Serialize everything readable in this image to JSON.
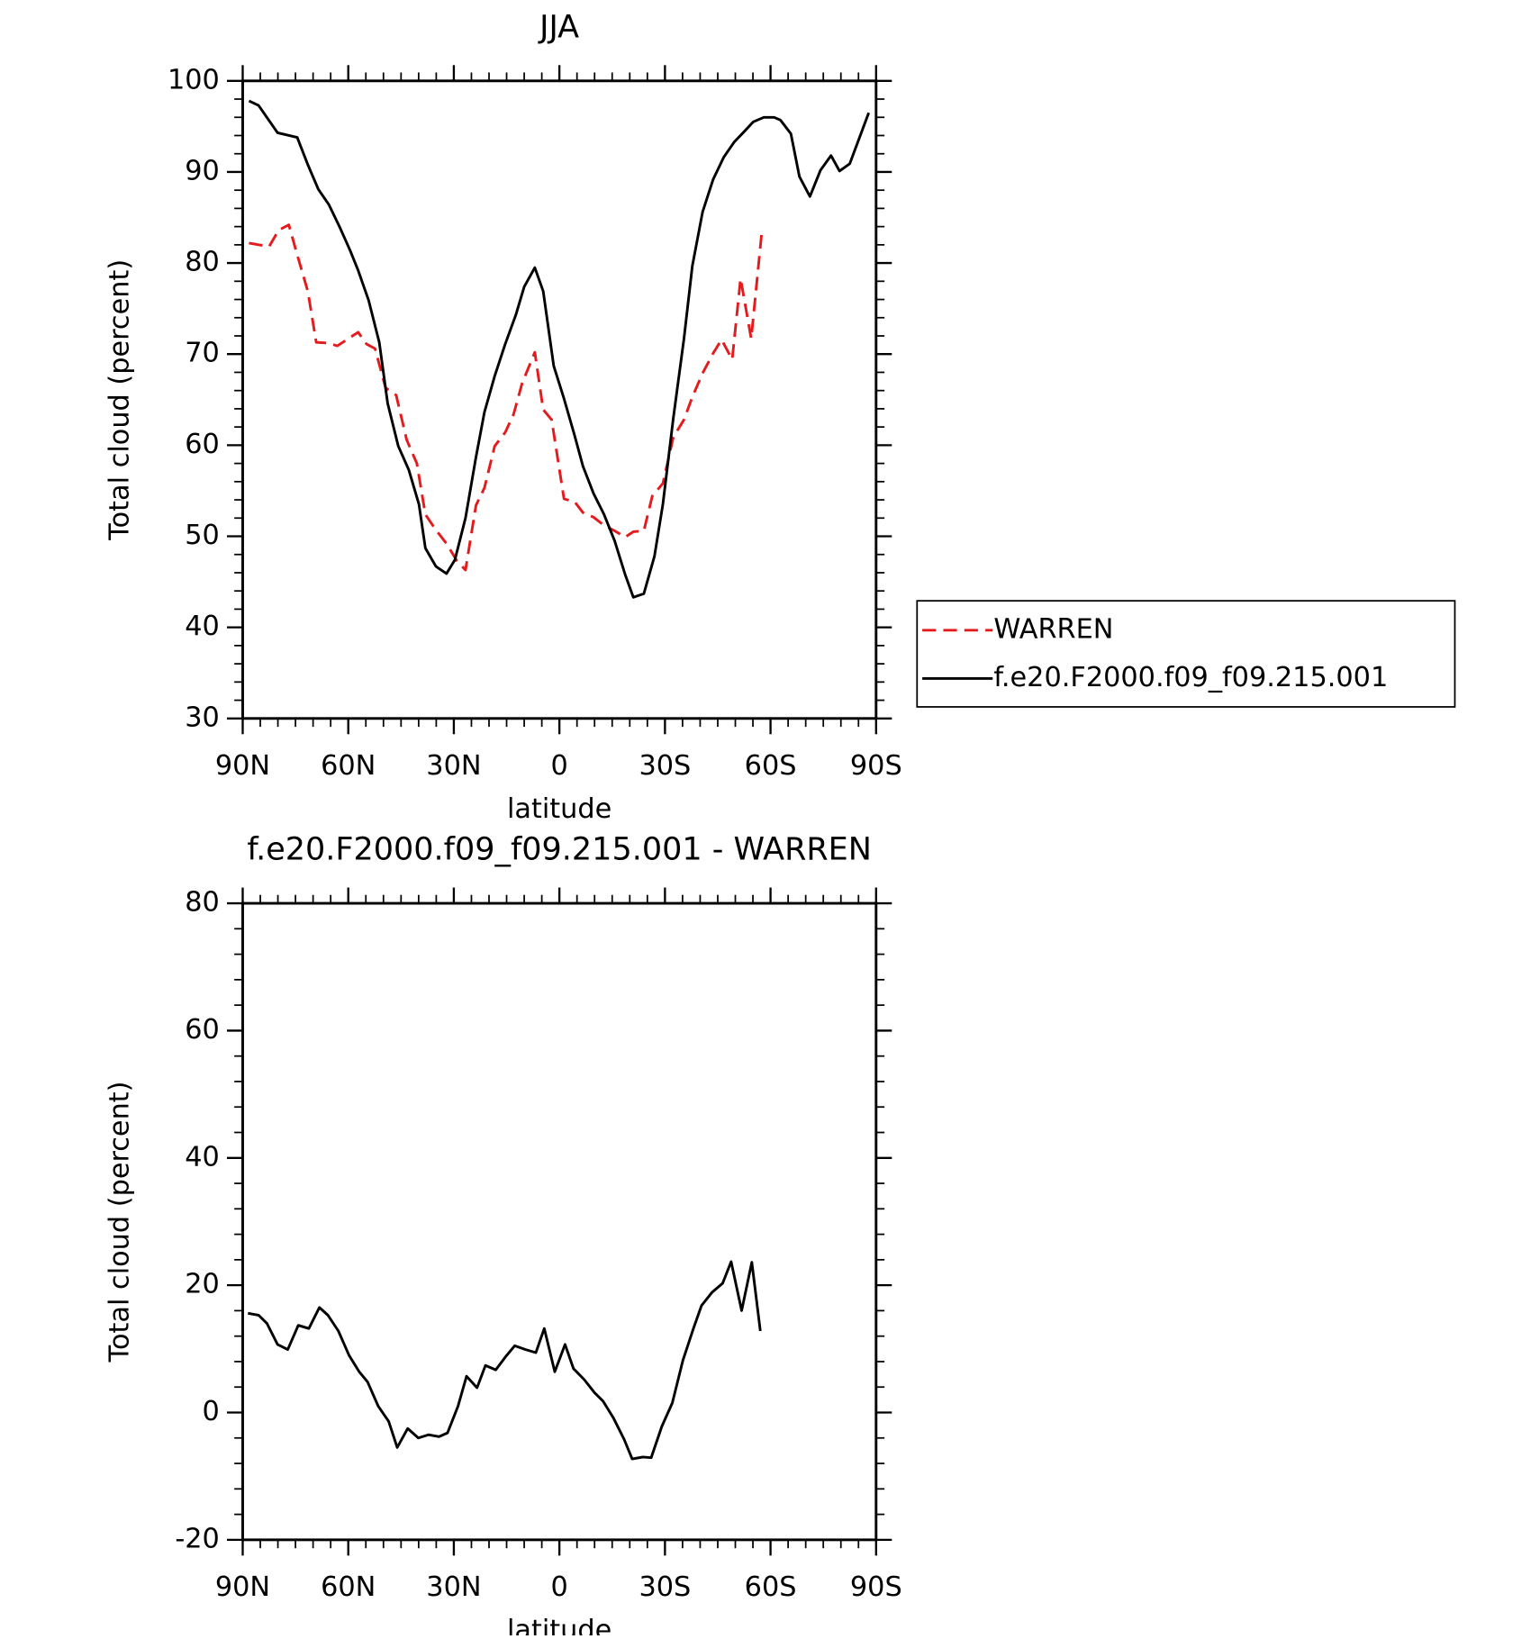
{
  "chart_data": [
    {
      "type": "line",
      "title": "JJA",
      "x_label": "latitude",
      "y_label": "Total cloud (percent)",
      "xlim": [
        90,
        -90
      ],
      "xticks": [
        {
          "value": 90,
          "label": "90N"
        },
        {
          "value": 60,
          "label": "60N"
        },
        {
          "value": 30,
          "label": "30N"
        },
        0,
        {
          "value": -30,
          "label": "30S"
        },
        {
          "value": -60,
          "label": "60S"
        },
        {
          "value": -90,
          "label": "90S"
        }
      ],
      "ylim": [
        30,
        100
      ],
      "yticks": [
        30,
        40,
        50,
        60,
        70,
        80,
        90,
        100
      ],
      "legend": "right",
      "series": [
        {
          "name": "WARREN",
          "color": "#e41a1c",
          "style": "dashed",
          "x": [
            88.2,
            82.5,
            79.8,
            76.9,
            74.5,
            71.5,
            69.1,
            65.5,
            63.1,
            57.2,
            54.8,
            52.4,
            49.4,
            46.4,
            43.4,
            40.5,
            38.1,
            35.1,
            32.1,
            29.1,
            26.7,
            23.7,
            21.3,
            18.4,
            15.4,
            13.0,
            10.6,
            7.0,
            4.6,
            2.2,
            -1.3,
            -4.3,
            -6.7,
            -9.7,
            -12.7,
            -15.7,
            -18.7,
            -21.0,
            -24.0,
            -26.4,
            -29.4,
            -32.4,
            -35.4,
            -37.8,
            -40.7,
            -43.7,
            -46.1,
            -49.1,
            -51.5,
            -54.5,
            -57.5
          ],
          "values": [
            82.2,
            81.8,
            83.6,
            84.2,
            80.9,
            76.9,
            71.3,
            71.2,
            70.9,
            72.4,
            71.1,
            70.6,
            66.3,
            65.5,
            60.6,
            58.0,
            52.4,
            50.7,
            49.2,
            47.3,
            46.3,
            53.4,
            55.3,
            59.9,
            61.4,
            63.4,
            66.8,
            70.2,
            63.9,
            62.8,
            54.1,
            53.8,
            52.6,
            52.1,
            51.2,
            50.6,
            49.9,
            50.5,
            50.6,
            54.4,
            55.8,
            60.9,
            62.8,
            65.3,
            67.9,
            70.1,
            71.6,
            69.4,
            78.3,
            71.7,
            83.3
          ]
        },
        {
          "name": "f.e20.F2000.f09_f09.215.001",
          "color": "#000000",
          "style": "solid",
          "x": [
            88.2,
            85.5,
            80.1,
            74.5,
            71.5,
            68.5,
            65.5,
            62.5,
            59.5,
            57.2,
            54.2,
            51.2,
            48.8,
            45.8,
            42.8,
            39.9,
            38.1,
            35.1,
            32.1,
            29.7,
            26.7,
            23.7,
            21.3,
            18.4,
            15.4,
            12.4,
            10.0,
            7.0,
            4.6,
            1.6,
            -1.3,
            -4.3,
            -6.7,
            -9.7,
            -12.7,
            -15.7,
            -18.7,
            -21.0,
            -24.0,
            -27.0,
            -29.4,
            -32.4,
            -35.4,
            -37.8,
            -40.7,
            -43.7,
            -46.7,
            -49.7,
            -52.7,
            -55.1,
            -58.1,
            -61.0,
            -62.8,
            -65.8,
            -68.2,
            -71.2,
            -74.2,
            -77.2,
            -79.6,
            -82.5,
            -87.9
          ],
          "values": [
            97.8,
            97.3,
            94.3,
            93.8,
            90.8,
            88.1,
            86.4,
            84.0,
            81.4,
            79.2,
            75.9,
            71.3,
            64.6,
            59.9,
            57.3,
            53.5,
            48.7,
            46.7,
            45.9,
            47.4,
            52.0,
            58.7,
            63.6,
            67.6,
            71.1,
            74.3,
            77.4,
            79.5,
            76.9,
            68.7,
            65.1,
            61.1,
            57.7,
            54.7,
            52.4,
            49.5,
            45.8,
            43.3,
            43.7,
            47.8,
            53.5,
            63.0,
            71.7,
            79.7,
            85.6,
            89.2,
            91.6,
            93.3,
            94.5,
            95.5,
            96.0,
            96.0,
            95.7,
            94.2,
            89.5,
            87.3,
            90.2,
            91.8,
            90.1,
            90.9,
            96.5
          ]
        }
      ]
    },
    {
      "type": "line",
      "title": "f.e20.F2000.f09_f09.215.001 - WARREN",
      "x_label": "latitude",
      "y_label": "Total cloud (percent)",
      "xlim": [
        90,
        -90
      ],
      "xticks": [
        {
          "value": 90,
          "label": "90N"
        },
        {
          "value": 60,
          "label": "60N"
        },
        {
          "value": 30,
          "label": "30N"
        },
        0,
        {
          "value": -30,
          "label": "30S"
        },
        {
          "value": -60,
          "label": "60S"
        },
        {
          "value": -90,
          "label": "90S"
        }
      ],
      "ylim": [
        -20,
        80
      ],
      "yticks": [
        -20,
        0,
        20,
        40,
        60,
        80
      ],
      "series": [
        {
          "color": "#000000",
          "style": "solid",
          "x": [
            88.5,
            85.5,
            83.1,
            80.1,
            77.2,
            74.2,
            71.2,
            68.2,
            65.8,
            62.8,
            59.8,
            56.9,
            54.5,
            51.5,
            48.5,
            46.1,
            43.1,
            40.1,
            37.2,
            34.2,
            31.8,
            28.8,
            26.4,
            23.4,
            21.0,
            18.1,
            15.1,
            12.7,
            9.7,
            6.7,
            4.3,
            1.3,
            -1.6,
            -4.0,
            -7.0,
            -10.0,
            -12.4,
            -15.4,
            -18.4,
            -20.7,
            -23.7,
            -26.1,
            -29.1,
            -32.1,
            -35.1,
            -38.1,
            -40.4,
            -43.4,
            -46.4,
            -48.8,
            -51.8,
            -54.7,
            -57.1
          ],
          "values": [
            15.6,
            15.3,
            14.0,
            10.7,
            9.9,
            13.7,
            13.2,
            16.5,
            15.3,
            12.8,
            9.0,
            6.4,
            4.8,
            1.0,
            -1.4,
            -5.5,
            -2.5,
            -4.0,
            -3.5,
            -3.8,
            -3.2,
            1.0,
            5.7,
            3.9,
            7.4,
            6.7,
            8.9,
            10.5,
            9.9,
            9.4,
            13.2,
            6.4,
            10.7,
            6.9,
            5.2,
            3.1,
            1.8,
            -0.9,
            -4.2,
            -7.3,
            -7.0,
            -7.1,
            -2.2,
            1.5,
            8.2,
            13.2,
            16.8,
            18.9,
            20.3,
            23.7,
            16.0,
            23.6,
            12.8
          ]
        }
      ]
    }
  ]
}
